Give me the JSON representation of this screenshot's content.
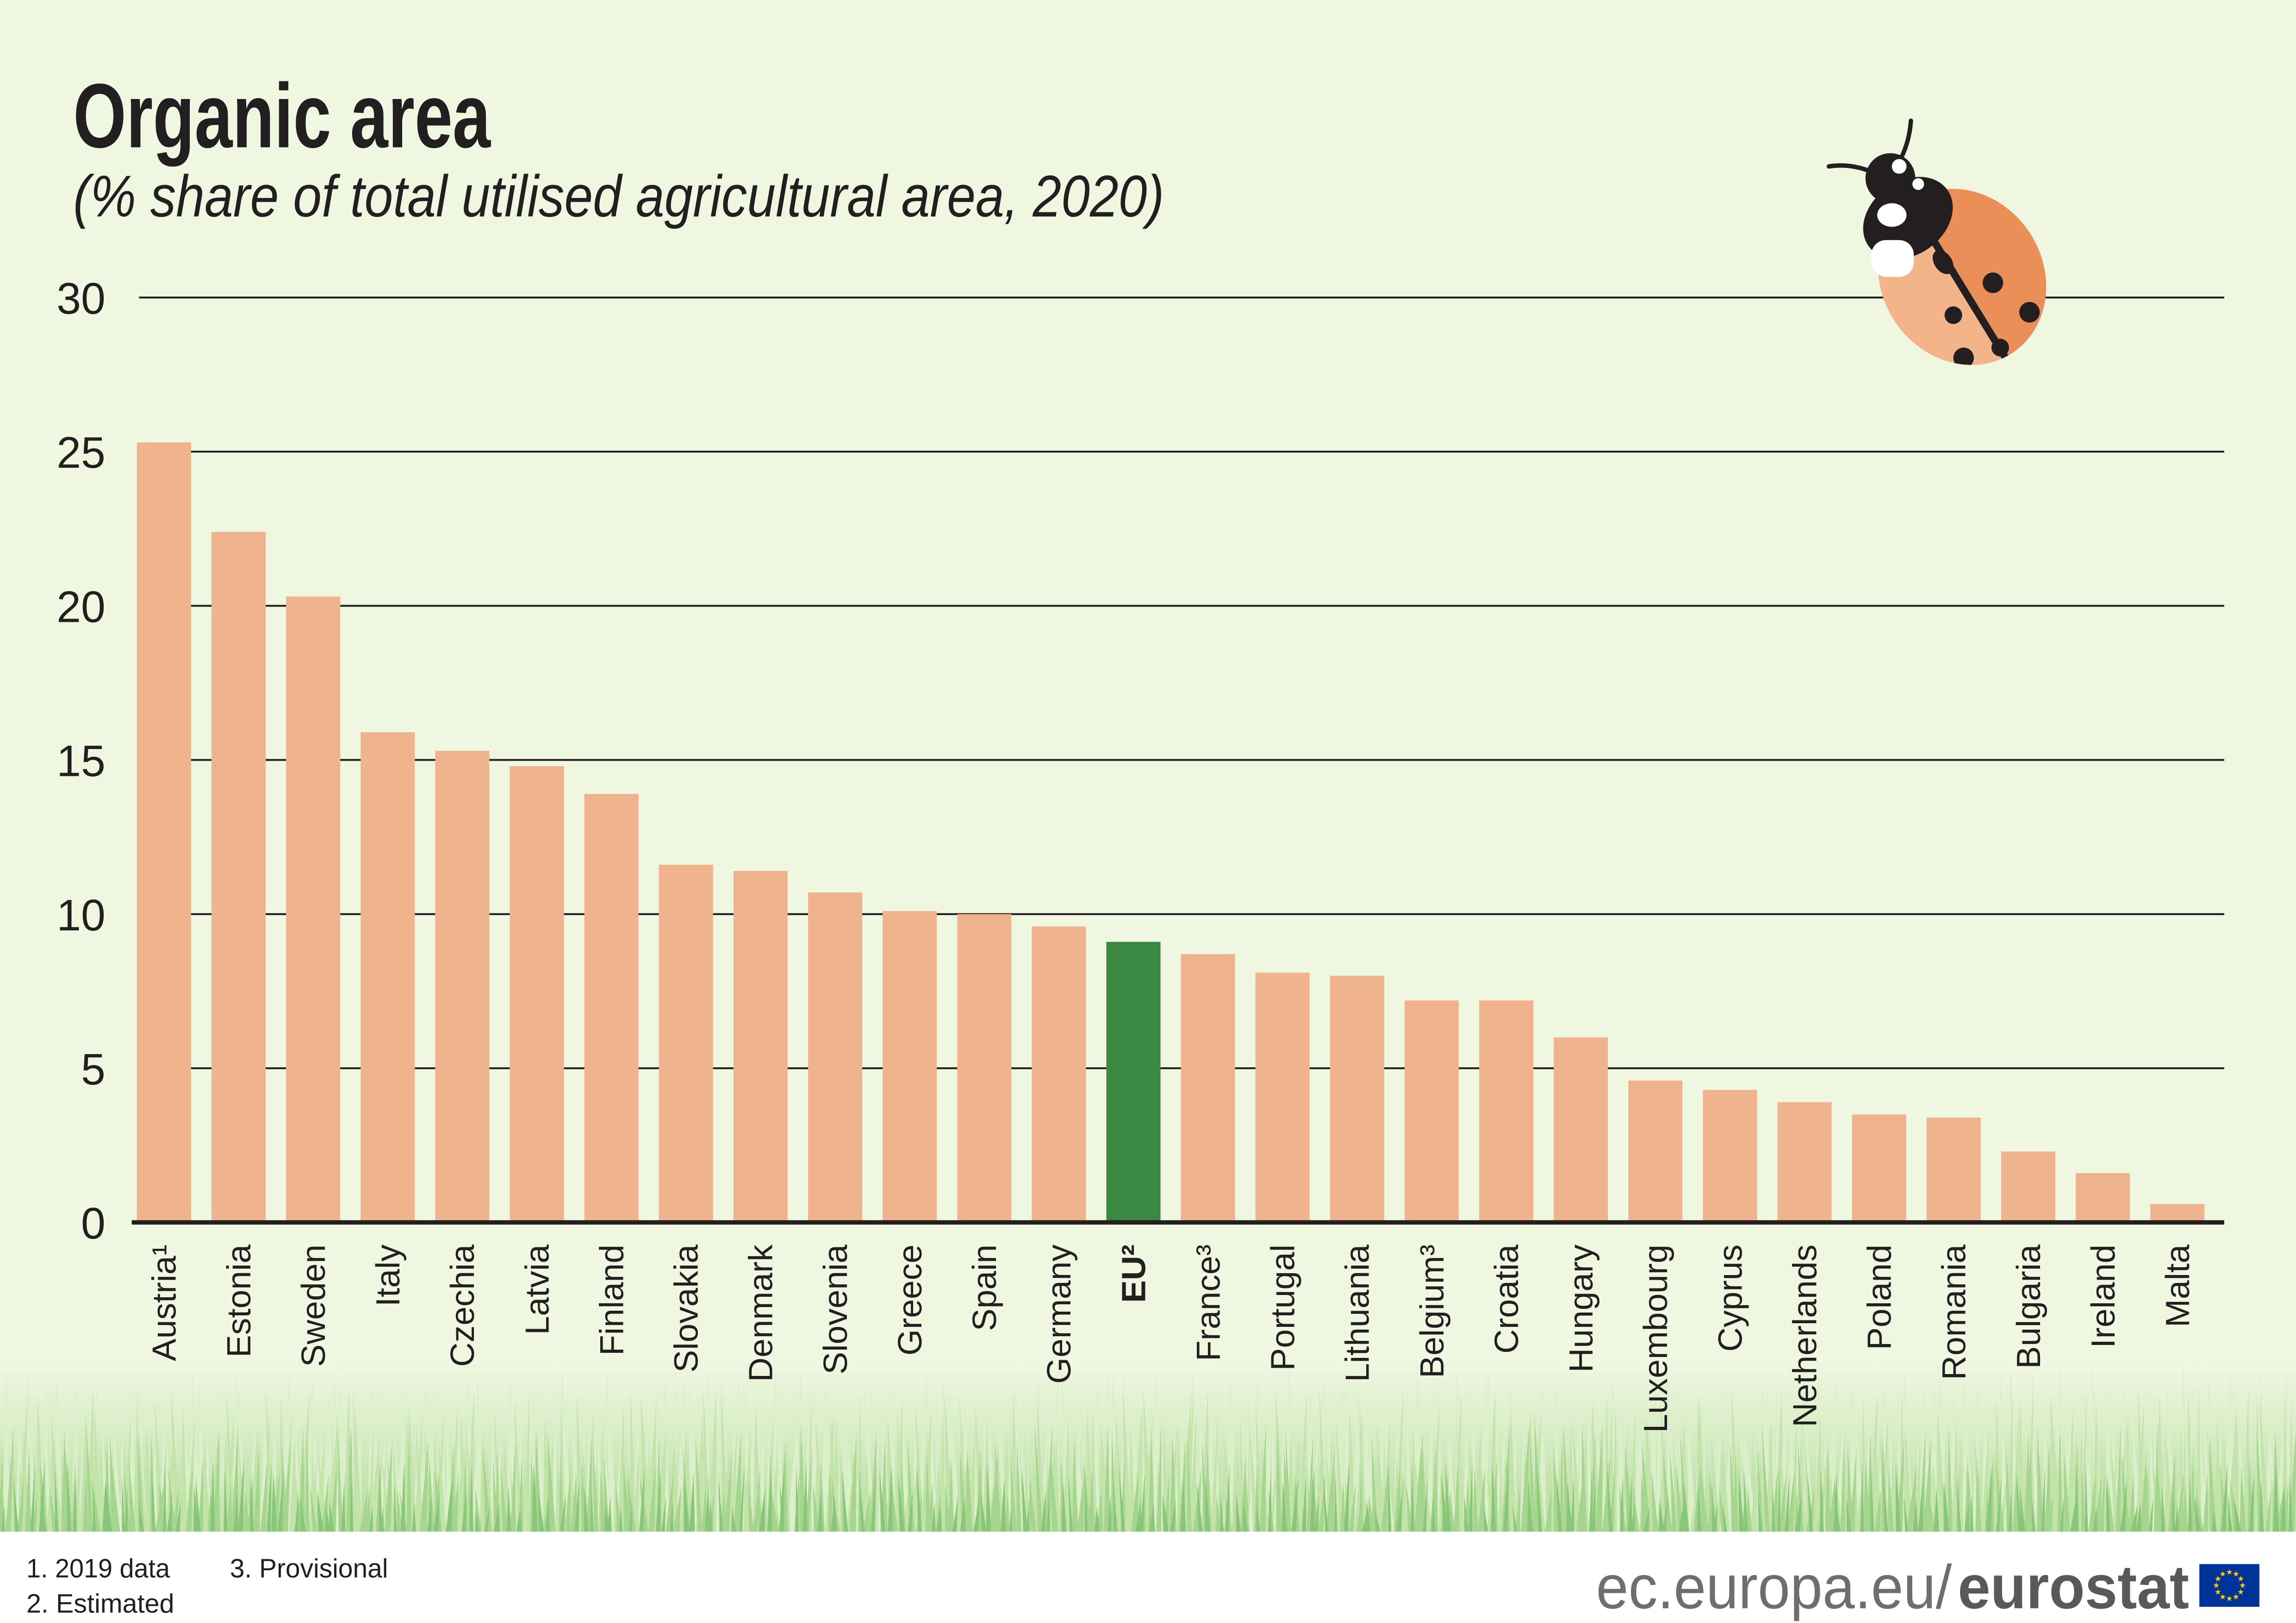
{
  "chart_data": {
    "type": "bar",
    "title": "Organic area",
    "subtitle": "(% share of total utilised agricultural area, 2020)",
    "categories": [
      "Austria¹",
      "Estonia",
      "Sweden",
      "Italy",
      "Czechia",
      "Latvia",
      "Finland",
      "Slovakia",
      "Denmark",
      "Slovenia",
      "Greece",
      "Spain",
      "Germany",
      "EU²",
      "France³",
      "Portugal",
      "Lithuania",
      "Belgium³",
      "Croatia",
      "Hungary",
      "Luxembourg",
      "Cyprus",
      "Netherlands",
      "Poland",
      "Romania",
      "Bulgaria",
      "Ireland",
      "Malta"
    ],
    "values": [
      25.3,
      22.4,
      20.3,
      15.9,
      15.3,
      14.8,
      13.9,
      11.6,
      11.4,
      10.7,
      10.1,
      10.0,
      9.6,
      9.1,
      8.7,
      8.1,
      8.0,
      7.2,
      7.2,
      6.0,
      4.6,
      4.3,
      3.9,
      3.5,
      3.4,
      2.3,
      1.6,
      0.6
    ],
    "ylim": [
      0,
      30
    ],
    "yticks": [
      0,
      5,
      10,
      15,
      20,
      25,
      30
    ],
    "grid": true,
    "highlight_category": "EU²",
    "colors": {
      "bar": "#EFB48D",
      "highlight": "#3B8842",
      "grid": "#231F20",
      "text": "#231F20"
    }
  },
  "footnotes": [
    "1. 2019 data",
    "2. Estimated",
    "3. Provisional"
  ],
  "source": {
    "domain": "ec.europa.eu/",
    "brand": "eurostat"
  },
  "icons": {
    "decoration": "ladybug-icon",
    "logo": "eu-flag-icon"
  },
  "colors": {
    "background": "#F0F7E1",
    "footer": "#FFFFFF",
    "eu_blue": "#003399",
    "eu_yellow": "#FFCC00"
  }
}
